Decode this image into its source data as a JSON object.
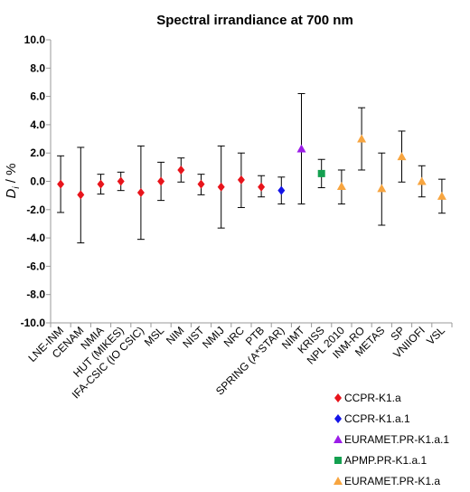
{
  "chart_data": {
    "type": "scatter",
    "title": "Spectral irrandiance at 700 nm",
    "ylabel_main": "D",
    "ylabel_sub": "i",
    "ylabel_rest": " / %",
    "ylim": [
      -10,
      10
    ],
    "yticks": [
      "10.0",
      "8.0",
      "6.0",
      "4.0",
      "2.0",
      "0.0",
      "-2.0",
      "-4.0",
      "-6.0",
      "-8.0",
      "-10.0"
    ],
    "ytick_values": [
      10,
      8,
      6,
      4,
      2,
      0,
      -2,
      -4,
      -6,
      -8,
      -10
    ],
    "grid": false,
    "legend_position": "bottom-right",
    "categories": [
      "LNE-INM",
      "CENAM",
      "NMIA",
      "HUT (MIKES)",
      "IFA-CSIC (IO CSIC)",
      "MSL",
      "NIM",
      "NIST",
      "NMIJ",
      "NRC",
      "PTB",
      "SPRING (A*STAR)",
      "NIMT",
      "KRISS",
      "NPL 2010",
      "INM-RO",
      "METAS",
      "SP",
      "VNIIOFI",
      "VSL"
    ],
    "series": [
      {
        "name": "CCPR-K1.a",
        "color": "#e8141b",
        "marker": "diamond",
        "points": [
          {
            "x": "LNE-INM",
            "y": -0.2,
            "ylow": -2.2,
            "yhigh": 1.8
          },
          {
            "x": "CENAM",
            "y": -0.95,
            "ylow": -4.35,
            "yhigh": 2.4
          },
          {
            "x": "NMIA",
            "y": -0.2,
            "ylow": -0.9,
            "yhigh": 0.5
          },
          {
            "x": "HUT (MIKES)",
            "y": 0.0,
            "ylow": -0.65,
            "yhigh": 0.65
          },
          {
            "x": "IFA-CSIC (IO CSIC)",
            "y": -0.8,
            "ylow": -4.1,
            "yhigh": 2.5
          },
          {
            "x": "MSL",
            "y": 0.0,
            "ylow": -1.35,
            "yhigh": 1.35
          },
          {
            "x": "NIM",
            "y": 0.8,
            "ylow": -0.05,
            "yhigh": 1.65
          },
          {
            "x": "NIST",
            "y": -0.2,
            "ylow": -0.95,
            "yhigh": 0.5
          },
          {
            "x": "NMIJ",
            "y": -0.4,
            "ylow": -3.3,
            "yhigh": 2.5
          },
          {
            "x": "NRC",
            "y": 0.1,
            "ylow": -1.85,
            "yhigh": 2.0
          },
          {
            "x": "PTB",
            "y": -0.4,
            "ylow": -1.1,
            "yhigh": 0.4
          }
        ]
      },
      {
        "name": "CCPR-K1.a.1",
        "color": "#1414e8",
        "marker": "diamond",
        "points": [
          {
            "x": "SPRING (A*STAR)",
            "y": -0.65,
            "ylow": -1.6,
            "yhigh": 0.3
          }
        ]
      },
      {
        "name": "EURAMET.PR-K1.a.1",
        "color": "#9b1de8",
        "marker": "triangle",
        "points": [
          {
            "x": "NIMT",
            "y": 2.3,
            "ylow": -1.6,
            "yhigh": 6.2
          }
        ]
      },
      {
        "name": "APMP.PR-K1.a.1",
        "color": "#14a050",
        "marker": "square",
        "points": [
          {
            "x": "KRISS",
            "y": 0.55,
            "ylow": -0.45,
            "yhigh": 1.55
          }
        ]
      },
      {
        "name": "EURAMET.PR-K1.a",
        "color": "#f7a540",
        "marker": "triangle",
        "points": [
          {
            "x": "NPL 2010",
            "y": -0.35,
            "ylow": -1.6,
            "yhigh": 0.8
          },
          {
            "x": "INM-RO",
            "y": 3.0,
            "ylow": 0.8,
            "yhigh": 5.2
          },
          {
            "x": "METAS",
            "y": -0.5,
            "ylow": -3.1,
            "yhigh": 2.0
          },
          {
            "x": "SP",
            "y": 1.75,
            "ylow": -0.05,
            "yhigh": 3.55
          },
          {
            "x": "VNIIOFI",
            "y": 0.0,
            "ylow": -1.1,
            "yhigh": 1.1
          },
          {
            "x": "VSL",
            "y": -1.05,
            "ylow": -2.25,
            "yhigh": 0.15
          }
        ]
      }
    ]
  }
}
